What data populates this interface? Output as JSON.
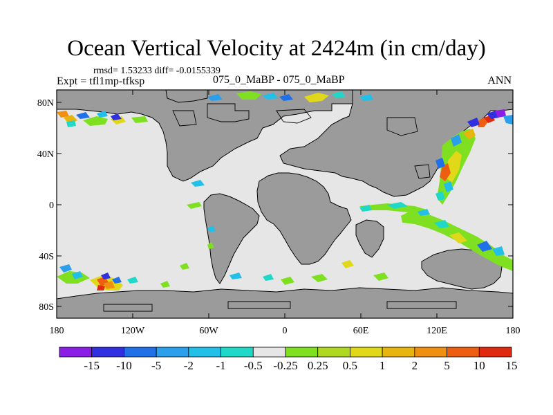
{
  "title": "Ocean Vertical Velocity at 2424m (in cm/day)",
  "stats_text": "rmsd= 1.53233 diff= -0.0155339",
  "experiment_text": "Expt = tfl1mp-tfksp",
  "subtitle": "075_0_MaBP - 075_0_MaBP",
  "season": "ANN",
  "colors": {
    "land": "#9b9b9b",
    "ocean_neutral": "#e6e6e6",
    "coastline": "#000000"
  },
  "map": {
    "lon_range": [
      -180,
      180
    ],
    "lat_range": [
      -90,
      90
    ],
    "y_ticks": [
      "80N",
      "40N",
      "0",
      "40S",
      "80S"
    ],
    "x_ticks": [
      "180",
      "120W",
      "60W",
      "0",
      "60E",
      "120E",
      "180"
    ]
  },
  "colorbar": {
    "colors": [
      "#8a1ee6",
      "#3030e0",
      "#2070e8",
      "#2aa0ec",
      "#22c0e8",
      "#20d8c8",
      "#e6e6e6",
      "#7ee020",
      "#b0d820",
      "#e0d818",
      "#e8b410",
      "#f09010",
      "#ee5e10",
      "#e02a10"
    ],
    "labels": [
      "-15",
      "-10",
      "-5",
      "-2",
      "-1",
      "-0.5",
      "-0.25",
      "0.25",
      "0.5",
      "1",
      "2",
      "5",
      "10",
      "15"
    ]
  }
}
